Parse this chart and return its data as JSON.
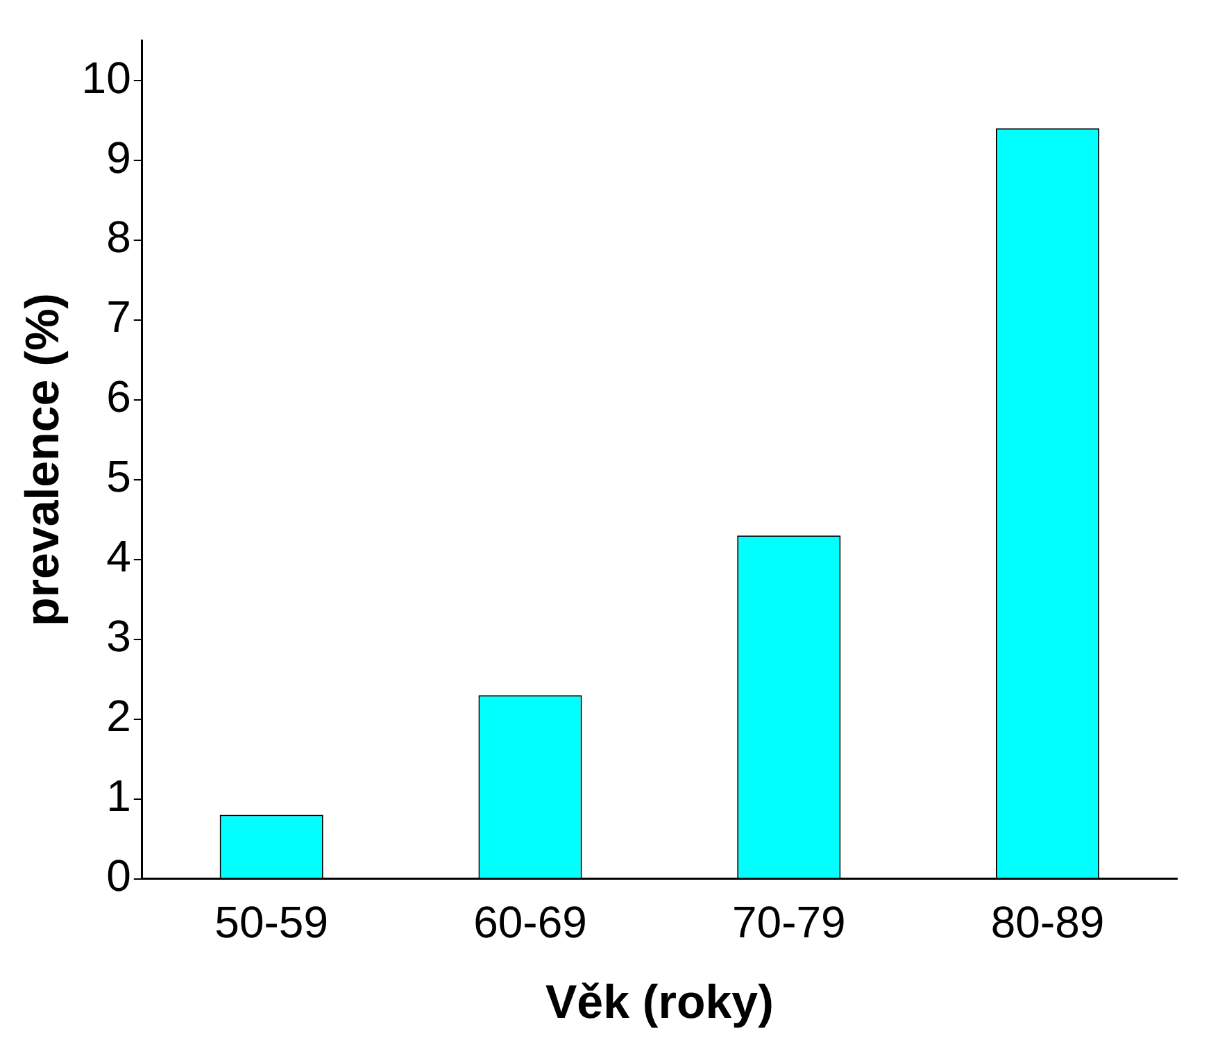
{
  "chart_data": {
    "type": "bar",
    "xlabel": "Věk (roky)",
    "ylabel": "prevalence (%)",
    "categories": [
      "50-59",
      "60-69",
      "70-79",
      "80-89"
    ],
    "values": [
      0.8,
      2.3,
      4.3,
      9.4
    ],
    "color": "#00ffff",
    "ylim": [
      0,
      10.5
    ],
    "yticks": [
      0,
      1,
      2,
      3,
      4,
      5,
      6,
      7,
      8,
      9,
      10
    ],
    "grid": false,
    "legend": false
  }
}
